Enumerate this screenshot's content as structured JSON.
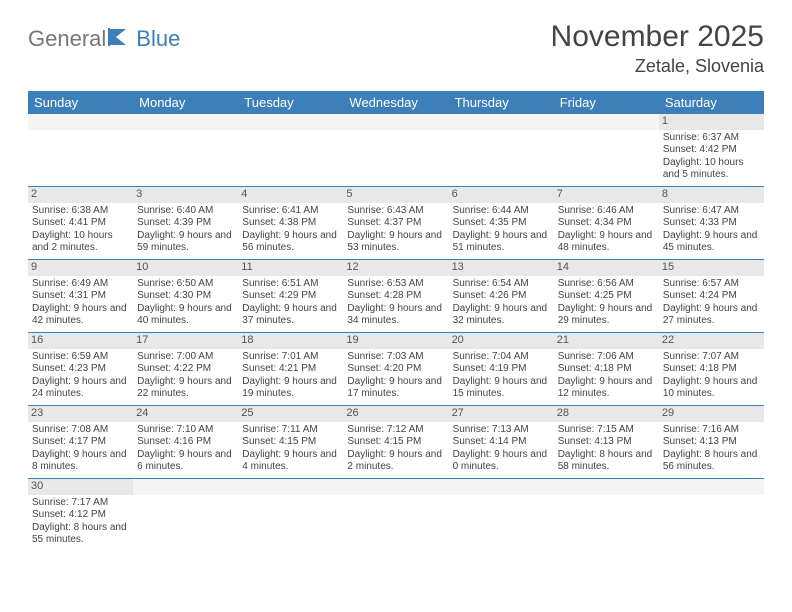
{
  "brand": {
    "part1": "General",
    "part2": "Blue"
  },
  "title": "November 2025",
  "location": "Zetale, Slovenia",
  "style": {
    "accent": "#3d7fb8",
    "daynum_bg": "#e8e8e8",
    "text_color": "#444444",
    "header_text": "#ffffff",
    "row_border": "#3d7fb8",
    "page_bg": "#ffffff",
    "title_fontsize": 30,
    "subtitle_fontsize": 18,
    "cell_fontsize": 10,
    "header_fontsize": 13,
    "columns": 7,
    "rows": 6
  },
  "weekdays": [
    "Sunday",
    "Monday",
    "Tuesday",
    "Wednesday",
    "Thursday",
    "Friday",
    "Saturday"
  ],
  "weeks": [
    [
      null,
      null,
      null,
      null,
      null,
      null,
      {
        "d": "1",
        "sr": "Sunrise: 6:37 AM",
        "ss": "Sunset: 4:42 PM",
        "dl": "Daylight: 10 hours and 5 minutes."
      }
    ],
    [
      {
        "d": "2",
        "sr": "Sunrise: 6:38 AM",
        "ss": "Sunset: 4:41 PM",
        "dl": "Daylight: 10 hours and 2 minutes."
      },
      {
        "d": "3",
        "sr": "Sunrise: 6:40 AM",
        "ss": "Sunset: 4:39 PM",
        "dl": "Daylight: 9 hours and 59 minutes."
      },
      {
        "d": "4",
        "sr": "Sunrise: 6:41 AM",
        "ss": "Sunset: 4:38 PM",
        "dl": "Daylight: 9 hours and 56 minutes."
      },
      {
        "d": "5",
        "sr": "Sunrise: 6:43 AM",
        "ss": "Sunset: 4:37 PM",
        "dl": "Daylight: 9 hours and 53 minutes."
      },
      {
        "d": "6",
        "sr": "Sunrise: 6:44 AM",
        "ss": "Sunset: 4:35 PM",
        "dl": "Daylight: 9 hours and 51 minutes."
      },
      {
        "d": "7",
        "sr": "Sunrise: 6:46 AM",
        "ss": "Sunset: 4:34 PM",
        "dl": "Daylight: 9 hours and 48 minutes."
      },
      {
        "d": "8",
        "sr": "Sunrise: 6:47 AM",
        "ss": "Sunset: 4:33 PM",
        "dl": "Daylight: 9 hours and 45 minutes."
      }
    ],
    [
      {
        "d": "9",
        "sr": "Sunrise: 6:49 AM",
        "ss": "Sunset: 4:31 PM",
        "dl": "Daylight: 9 hours and 42 minutes."
      },
      {
        "d": "10",
        "sr": "Sunrise: 6:50 AM",
        "ss": "Sunset: 4:30 PM",
        "dl": "Daylight: 9 hours and 40 minutes."
      },
      {
        "d": "11",
        "sr": "Sunrise: 6:51 AM",
        "ss": "Sunset: 4:29 PM",
        "dl": "Daylight: 9 hours and 37 minutes."
      },
      {
        "d": "12",
        "sr": "Sunrise: 6:53 AM",
        "ss": "Sunset: 4:28 PM",
        "dl": "Daylight: 9 hours and 34 minutes."
      },
      {
        "d": "13",
        "sr": "Sunrise: 6:54 AM",
        "ss": "Sunset: 4:26 PM",
        "dl": "Daylight: 9 hours and 32 minutes."
      },
      {
        "d": "14",
        "sr": "Sunrise: 6:56 AM",
        "ss": "Sunset: 4:25 PM",
        "dl": "Daylight: 9 hours and 29 minutes."
      },
      {
        "d": "15",
        "sr": "Sunrise: 6:57 AM",
        "ss": "Sunset: 4:24 PM",
        "dl": "Daylight: 9 hours and 27 minutes."
      }
    ],
    [
      {
        "d": "16",
        "sr": "Sunrise: 6:59 AM",
        "ss": "Sunset: 4:23 PM",
        "dl": "Daylight: 9 hours and 24 minutes."
      },
      {
        "d": "17",
        "sr": "Sunrise: 7:00 AM",
        "ss": "Sunset: 4:22 PM",
        "dl": "Daylight: 9 hours and 22 minutes."
      },
      {
        "d": "18",
        "sr": "Sunrise: 7:01 AM",
        "ss": "Sunset: 4:21 PM",
        "dl": "Daylight: 9 hours and 19 minutes."
      },
      {
        "d": "19",
        "sr": "Sunrise: 7:03 AM",
        "ss": "Sunset: 4:20 PM",
        "dl": "Daylight: 9 hours and 17 minutes."
      },
      {
        "d": "20",
        "sr": "Sunrise: 7:04 AM",
        "ss": "Sunset: 4:19 PM",
        "dl": "Daylight: 9 hours and 15 minutes."
      },
      {
        "d": "21",
        "sr": "Sunrise: 7:06 AM",
        "ss": "Sunset: 4:18 PM",
        "dl": "Daylight: 9 hours and 12 minutes."
      },
      {
        "d": "22",
        "sr": "Sunrise: 7:07 AM",
        "ss": "Sunset: 4:18 PM",
        "dl": "Daylight: 9 hours and 10 minutes."
      }
    ],
    [
      {
        "d": "23",
        "sr": "Sunrise: 7:08 AM",
        "ss": "Sunset: 4:17 PM",
        "dl": "Daylight: 9 hours and 8 minutes."
      },
      {
        "d": "24",
        "sr": "Sunrise: 7:10 AM",
        "ss": "Sunset: 4:16 PM",
        "dl": "Daylight: 9 hours and 6 minutes."
      },
      {
        "d": "25",
        "sr": "Sunrise: 7:11 AM",
        "ss": "Sunset: 4:15 PM",
        "dl": "Daylight: 9 hours and 4 minutes."
      },
      {
        "d": "26",
        "sr": "Sunrise: 7:12 AM",
        "ss": "Sunset: 4:15 PM",
        "dl": "Daylight: 9 hours and 2 minutes."
      },
      {
        "d": "27",
        "sr": "Sunrise: 7:13 AM",
        "ss": "Sunset: 4:14 PM",
        "dl": "Daylight: 9 hours and 0 minutes."
      },
      {
        "d": "28",
        "sr": "Sunrise: 7:15 AM",
        "ss": "Sunset: 4:13 PM",
        "dl": "Daylight: 8 hours and 58 minutes."
      },
      {
        "d": "29",
        "sr": "Sunrise: 7:16 AM",
        "ss": "Sunset: 4:13 PM",
        "dl": "Daylight: 8 hours and 56 minutes."
      }
    ],
    [
      {
        "d": "30",
        "sr": "Sunrise: 7:17 AM",
        "ss": "Sunset: 4:12 PM",
        "dl": "Daylight: 8 hours and 55 minutes."
      },
      null,
      null,
      null,
      null,
      null,
      null
    ]
  ]
}
